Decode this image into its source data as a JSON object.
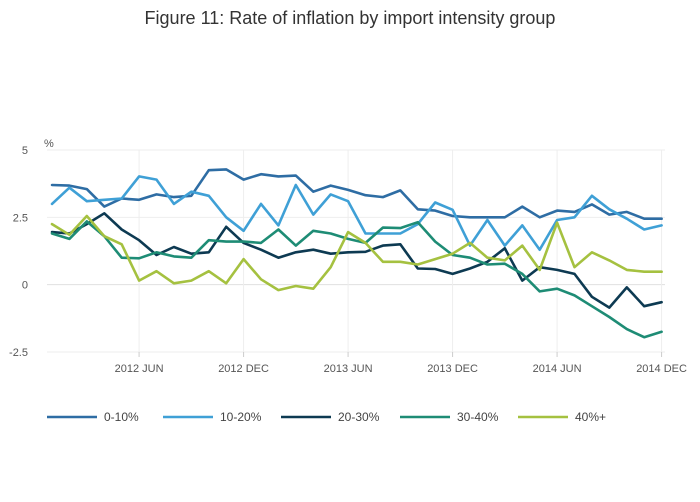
{
  "chart_data": {
    "type": "line",
    "title": "Figure 11: Rate of inflation by import intensity group",
    "ylabel": "%",
    "xlabel": "",
    "ylim": [
      -2.5,
      5
    ],
    "yticks": [
      {
        "value": -2.5,
        "label": "-2.5"
      },
      {
        "value": 0,
        "label": "0"
      },
      {
        "value": 2.5,
        "label": "2.5"
      },
      {
        "value": 5,
        "label": "5"
      }
    ],
    "xticks": [
      {
        "index": 5,
        "label": "2012 JUN"
      },
      {
        "index": 11,
        "label": "2012 DEC"
      },
      {
        "index": 17,
        "label": "2013 JUN"
      },
      {
        "index": 23,
        "label": "2013 DEC"
      },
      {
        "index": 29,
        "label": "2014 JUN"
      },
      {
        "index": 35,
        "label": "2014 DEC"
      }
    ],
    "x": [
      "2012 JAN",
      "2012 FEB",
      "2012 MAR",
      "2012 APR",
      "2012 MAY",
      "2012 JUN",
      "2012 JUL",
      "2012 AUG",
      "2012 SEP",
      "2012 OCT",
      "2012 NOV",
      "2012 DEC",
      "2013 JAN",
      "2013 FEB",
      "2013 MAR",
      "2013 APR",
      "2013 MAY",
      "2013 JUN",
      "2013 JUL",
      "2013 AUG",
      "2013 SEP",
      "2013 OCT",
      "2013 NOV",
      "2013 DEC",
      "2014 JAN",
      "2014 FEB",
      "2014 MAR",
      "2014 APR",
      "2014 MAY",
      "2014 JUN",
      "2014 JUL",
      "2014 AUG",
      "2014 SEP",
      "2014 OCT",
      "2014 NOV",
      "2014 DEC"
    ],
    "grid": true,
    "legend_position": "bottom",
    "series": [
      {
        "name": "0-10%",
        "color": "#2e6da4",
        "values": [
          3.7,
          3.68,
          3.55,
          2.9,
          3.2,
          3.15,
          3.35,
          3.25,
          3.3,
          4.25,
          4.28,
          3.9,
          4.1,
          4.02,
          4.05,
          3.45,
          3.68,
          3.52,
          3.32,
          3.25,
          3.5,
          2.8,
          2.75,
          2.55,
          2.5,
          2.5,
          2.5,
          2.9,
          2.5,
          2.75,
          2.7,
          2.98,
          2.6,
          2.7,
          2.45,
          2.45
        ]
      },
      {
        "name": "10-20%",
        "color": "#3fa0d6",
        "values": [
          3.0,
          3.6,
          3.1,
          3.15,
          3.2,
          4.02,
          3.9,
          3.0,
          3.45,
          3.3,
          2.5,
          2.0,
          3.0,
          2.2,
          3.7,
          2.6,
          3.35,
          3.1,
          1.9,
          1.9,
          1.9,
          2.25,
          3.05,
          2.78,
          1.45,
          2.4,
          1.45,
          2.2,
          1.3,
          2.4,
          2.5,
          3.3,
          2.8,
          2.45,
          2.05,
          2.2
        ]
      },
      {
        "name": "20-30%",
        "color": "#0d3a52",
        "values": [
          1.95,
          1.9,
          2.25,
          2.65,
          2.05,
          1.65,
          1.1,
          1.4,
          1.15,
          1.2,
          2.15,
          1.55,
          1.3,
          1.0,
          1.2,
          1.3,
          1.15,
          1.2,
          1.22,
          1.45,
          1.5,
          0.6,
          0.58,
          0.4,
          0.6,
          0.85,
          1.35,
          0.15,
          0.65,
          0.55,
          0.4,
          -0.45,
          -0.85,
          -0.1,
          -0.8,
          -0.65
        ]
      },
      {
        "name": "30-40%",
        "color": "#1e8c75",
        "values": [
          1.9,
          1.7,
          2.35,
          1.8,
          1.0,
          0.98,
          1.2,
          1.05,
          1.0,
          1.65,
          1.6,
          1.6,
          1.55,
          2.05,
          1.45,
          2.0,
          1.9,
          1.7,
          1.55,
          2.12,
          2.1,
          2.32,
          1.6,
          1.1,
          1.0,
          0.75,
          0.78,
          0.4,
          -0.25,
          -0.15,
          -0.4,
          -0.8,
          -1.2,
          -1.65,
          -1.95,
          -1.75
        ]
      },
      {
        "name": "40%+",
        "color": "#a5c140",
        "values": [
          2.25,
          1.85,
          2.55,
          1.8,
          1.5,
          0.15,
          0.5,
          0.05,
          0.15,
          0.5,
          0.05,
          0.95,
          0.2,
          -0.2,
          -0.05,
          -0.15,
          0.65,
          1.95,
          1.55,
          0.85,
          0.85,
          0.75,
          0.95,
          1.15,
          1.55,
          1.0,
          0.9,
          1.45,
          0.55,
          2.3,
          0.65,
          1.2,
          0.9,
          0.55,
          0.48,
          0.48
        ]
      }
    ]
  }
}
